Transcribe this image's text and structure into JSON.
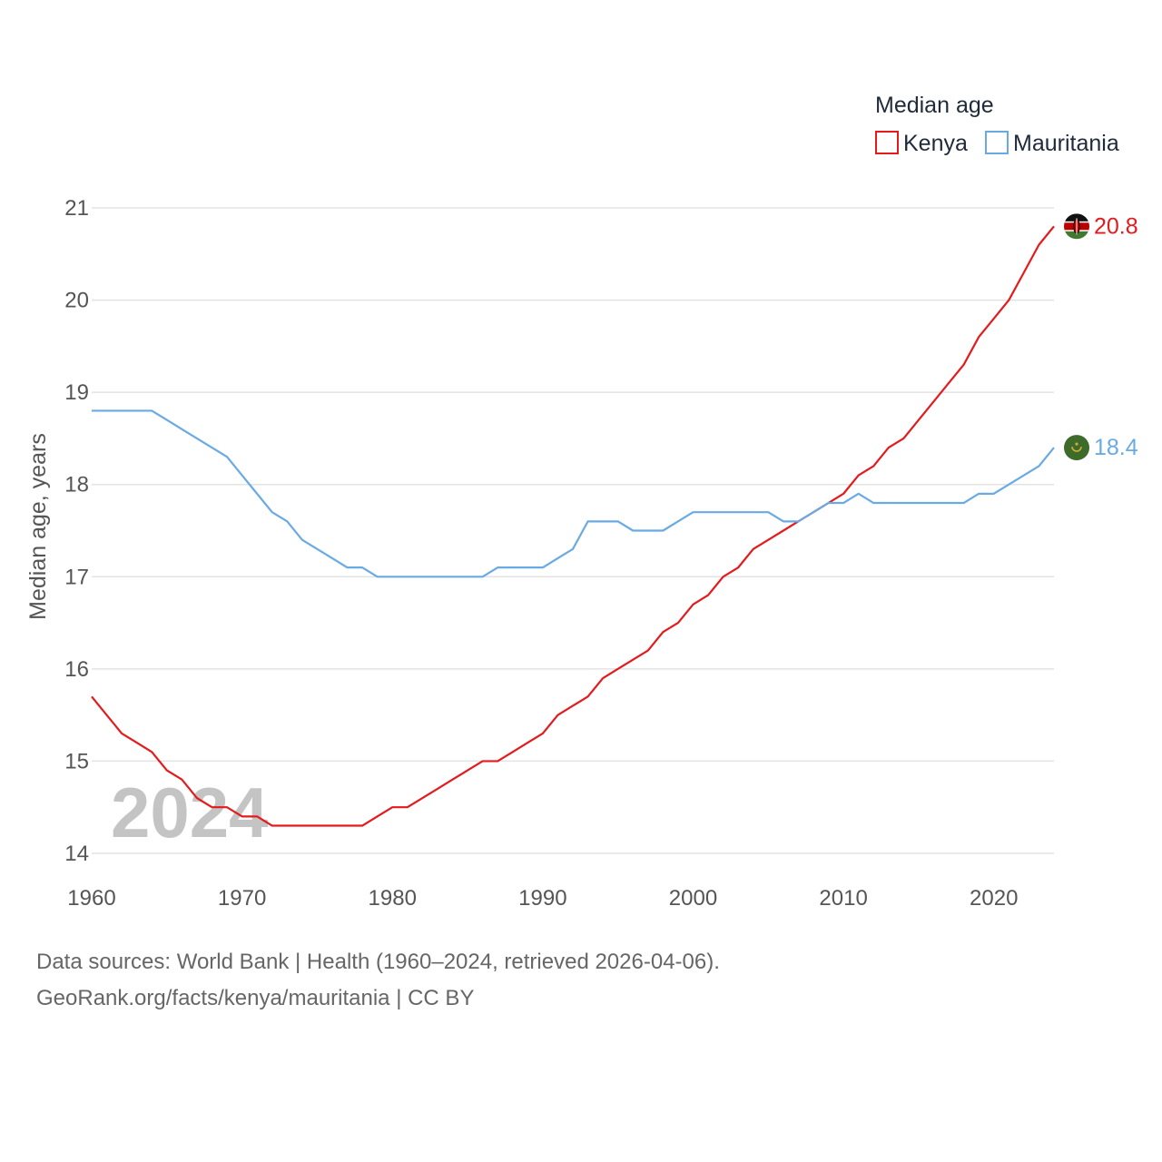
{
  "chart_data": {
    "type": "line",
    "legend_title": "Median age",
    "ylabel": "Median age, years",
    "xlabel": "",
    "year_label": "2024",
    "xlim": [
      1960,
      2024
    ],
    "ylim": [
      14,
      21
    ],
    "x_ticks": [
      "1960",
      "1970",
      "1980",
      "1990",
      "2000",
      "2010",
      "2020"
    ],
    "y_ticks": [
      "14",
      "15",
      "16",
      "17",
      "18",
      "19",
      "20",
      "21"
    ],
    "grid": true,
    "legend_position": "top-right",
    "x": [
      1960,
      1961,
      1962,
      1963,
      1964,
      1965,
      1966,
      1967,
      1968,
      1969,
      1970,
      1971,
      1972,
      1973,
      1974,
      1975,
      1976,
      1977,
      1978,
      1979,
      1980,
      1981,
      1982,
      1983,
      1984,
      1985,
      1986,
      1987,
      1988,
      1989,
      1990,
      1991,
      1992,
      1993,
      1994,
      1995,
      1996,
      1997,
      1998,
      1999,
      2000,
      2001,
      2002,
      2003,
      2004,
      2005,
      2006,
      2007,
      2008,
      2009,
      2010,
      2011,
      2012,
      2013,
      2014,
      2015,
      2016,
      2017,
      2018,
      2019,
      2020,
      2021,
      2022,
      2023,
      2024
    ],
    "series": [
      {
        "name": "Kenya",
        "color": "#e41a1c",
        "end_label": "20.8",
        "flag": "kenya-flag-icon",
        "values": [
          15.7,
          15.5,
          15.3,
          15.2,
          15.1,
          14.9,
          14.8,
          14.6,
          14.5,
          14.5,
          14.4,
          14.4,
          14.3,
          14.3,
          14.3,
          14.3,
          14.3,
          14.3,
          14.3,
          14.4,
          14.5,
          14.5,
          14.6,
          14.7,
          14.8,
          14.9,
          15.0,
          15.0,
          15.1,
          15.2,
          15.3,
          15.5,
          15.6,
          15.7,
          15.9,
          16.0,
          16.1,
          16.2,
          16.4,
          16.5,
          16.7,
          16.8,
          17.0,
          17.1,
          17.3,
          17.4,
          17.5,
          17.6,
          17.7,
          17.8,
          17.9,
          18.1,
          18.2,
          18.4,
          18.5,
          18.7,
          18.9,
          19.1,
          19.3,
          19.6,
          19.8,
          20.0,
          20.3,
          20.6,
          20.8
        ]
      },
      {
        "name": "Mauritania",
        "color": "#6aaae4",
        "end_label": "18.4",
        "flag": "mauritania-flag-icon",
        "values": [
          18.8,
          18.8,
          18.8,
          18.8,
          18.8,
          18.7,
          18.6,
          18.5,
          18.4,
          18.3,
          18.1,
          17.9,
          17.7,
          17.6,
          17.4,
          17.3,
          17.2,
          17.1,
          17.1,
          17.0,
          17.0,
          17.0,
          17.0,
          17.0,
          17.0,
          17.0,
          17.0,
          17.1,
          17.1,
          17.1,
          17.1,
          17.2,
          17.3,
          17.6,
          17.6,
          17.6,
          17.5,
          17.5,
          17.5,
          17.6,
          17.7,
          17.7,
          17.7,
          17.7,
          17.7,
          17.7,
          17.6,
          17.6,
          17.7,
          17.8,
          17.8,
          17.9,
          17.8,
          17.8,
          17.8,
          17.8,
          17.8,
          17.8,
          17.8,
          17.9,
          17.9,
          18.0,
          18.1,
          18.2,
          18.4
        ]
      }
    ]
  },
  "footer": {
    "line1": "Data sources: World Bank | Health (1960–2024, retrieved 2026-04-06).",
    "line2": "GeoRank.org/facts/kenya/mauritania | CC BY"
  }
}
